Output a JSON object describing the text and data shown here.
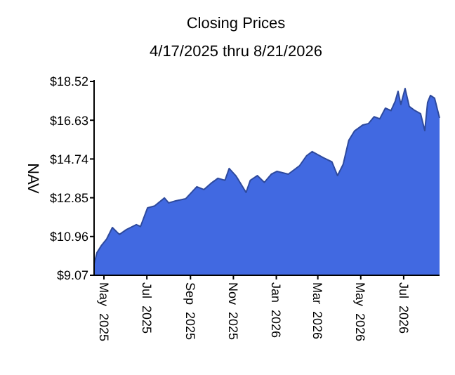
{
  "chart_data": {
    "type": "area",
    "title": "Closing Prices",
    "subtitle": "4/17/2025 thru 8/21/2026",
    "ylabel": "NAV",
    "x": [
      "2025-04-17",
      "2025-04-21",
      "2025-04-27",
      "2025-05-05",
      "2025-05-13",
      "2025-05-23",
      "2025-06-02",
      "2025-06-16",
      "2025-06-22",
      "2025-07-02",
      "2025-07-12",
      "2025-07-26",
      "2025-08-01",
      "2025-08-11",
      "2025-08-25",
      "2025-09-10",
      "2025-09-20",
      "2025-09-30",
      "2025-10-10",
      "2025-10-20",
      "2025-10-26",
      "2025-11-05",
      "2025-11-19",
      "2025-11-25",
      "2025-12-05",
      "2025-12-15",
      "2025-12-25",
      "2026-01-02",
      "2026-01-18",
      "2026-02-03",
      "2026-02-13",
      "2026-02-21",
      "2026-03-09",
      "2026-03-21",
      "2026-03-29",
      "2026-04-06",
      "2026-04-14",
      "2026-04-22",
      "2026-05-04",
      "2026-05-12",
      "2026-05-20",
      "2026-05-28",
      "2026-06-05",
      "2026-06-13",
      "2026-06-19",
      "2026-06-23",
      "2026-06-27",
      "2026-07-03",
      "2026-07-09",
      "2026-07-17",
      "2026-07-25",
      "2026-07-31",
      "2026-08-04",
      "2026-08-08",
      "2026-08-14",
      "2026-08-21"
    ],
    "series": [
      {
        "color": "#4169e1",
        "values": [
          9.62,
          10.17,
          10.5,
          10.85,
          11.4,
          11.06,
          11.3,
          11.54,
          11.45,
          12.36,
          12.45,
          12.84,
          12.6,
          12.7,
          12.8,
          13.39,
          13.25,
          13.55,
          13.8,
          13.7,
          14.28,
          13.9,
          13.11,
          13.7,
          13.93,
          13.6,
          14.0,
          14.14,
          14.0,
          14.41,
          14.9,
          15.1,
          14.8,
          14.6,
          13.93,
          14.48,
          15.65,
          16.1,
          16.4,
          16.47,
          16.8,
          16.7,
          17.22,
          17.1,
          17.56,
          18.04,
          17.4,
          18.18,
          17.3,
          17.1,
          16.95,
          16.12,
          17.5,
          17.84,
          17.7,
          16.74
        ]
      }
    ],
    "xlim": [
      "2025-04-17",
      "2026-08-21"
    ],
    "xticks": [
      {
        "value": "2025-05-01",
        "label": "May  2025"
      },
      {
        "value": "2025-07-01",
        "label": "Jul  2025"
      },
      {
        "value": "2025-09-01",
        "label": "Sep  2025"
      },
      {
        "value": "2025-11-01",
        "label": "Nov  2025"
      },
      {
        "value": "2026-01-01",
        "label": "Jan  2026"
      },
      {
        "value": "2026-03-01",
        "label": "Mar  2026"
      },
      {
        "value": "2026-05-01",
        "label": "May  2026"
      },
      {
        "value": "2026-07-01",
        "label": "Jul  2026"
      }
    ],
    "ylim": [
      9.07,
      18.52
    ],
    "yticks": [
      {
        "value": 9.07,
        "label": "$9.07"
      },
      {
        "value": 10.96,
        "label": "$10.96"
      },
      {
        "value": 12.85,
        "label": "$12.85"
      },
      {
        "value": 14.74,
        "label": "$14.74"
      },
      {
        "value": 16.63,
        "label": "$16.63"
      },
      {
        "value": 18.52,
        "label": "$18.52"
      }
    ],
    "grid": false
  }
}
